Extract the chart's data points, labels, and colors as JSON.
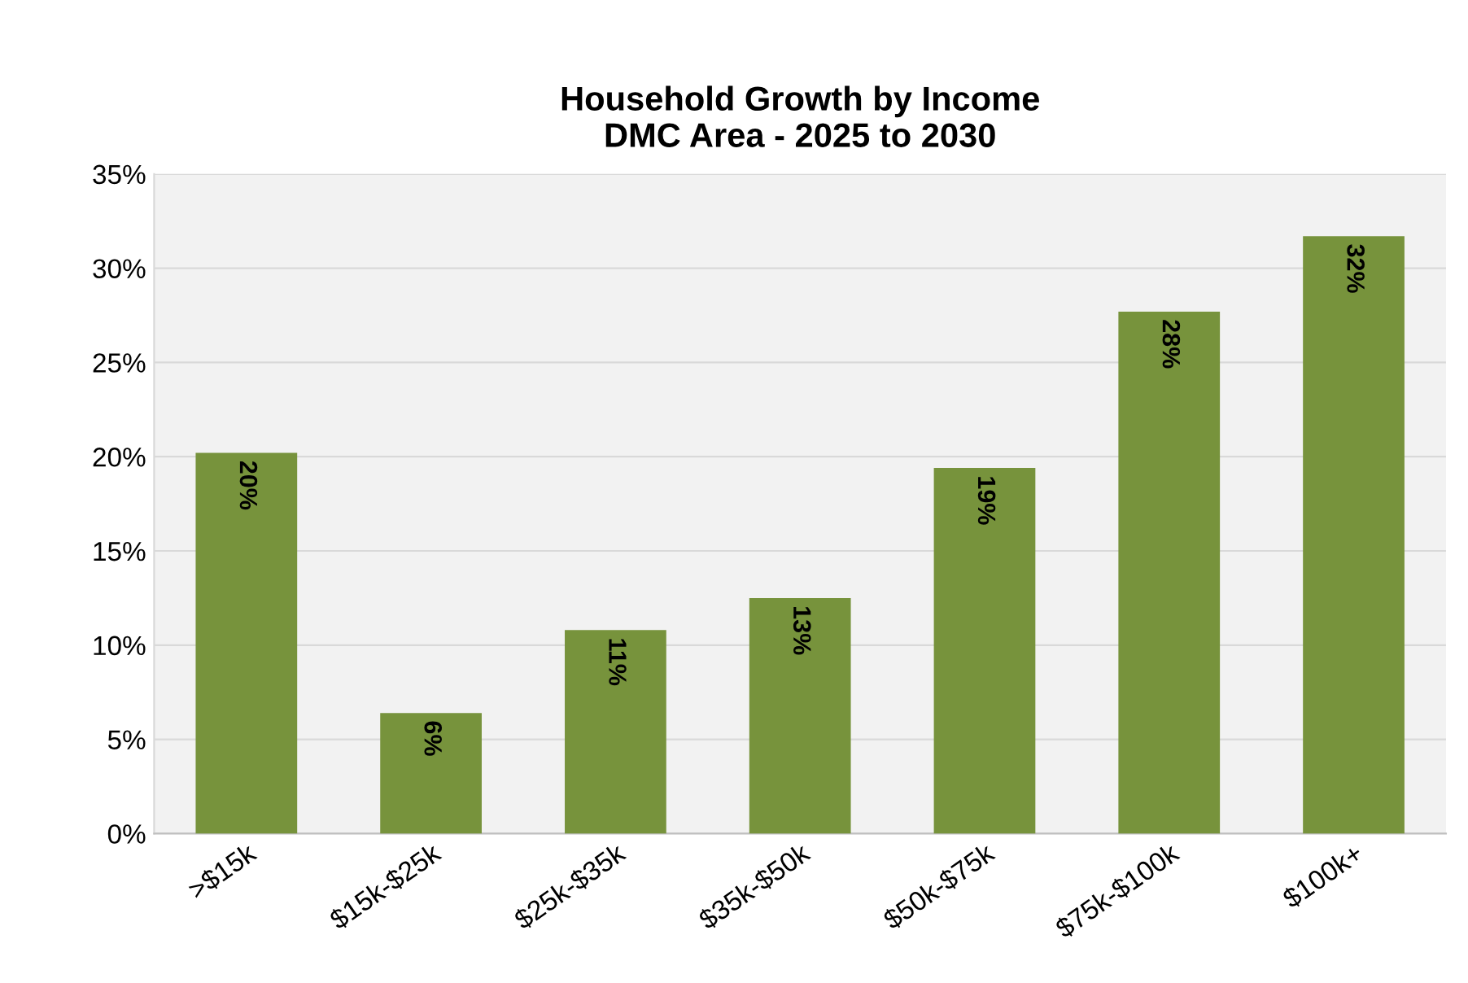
{
  "chart_data": {
    "type": "bar",
    "title": "Household Growth by Income\nDMC Area - 2025 to 2030",
    "categories": [
      ">$15k",
      "$15k-$25k",
      "$25k-$35k",
      "$35k-$50k",
      "$50k-$75k",
      "$75k-$100k",
      "$100k+"
    ],
    "values": [
      20.2,
      6.4,
      10.8,
      12.5,
      19.4,
      27.7,
      31.7
    ],
    "value_labels": [
      "20%",
      "6%",
      "11%",
      "13%",
      "19%",
      "28%",
      "32%"
    ],
    "color": "#77933c",
    "ylim": [
      0,
      35
    ],
    "yticks": [
      {
        "value": 0,
        "label": "0%"
      },
      {
        "value": 5,
        "label": "5%"
      },
      {
        "value": 10,
        "label": "10%"
      },
      {
        "value": 15,
        "label": "15%"
      },
      {
        "value": 20,
        "label": "20%"
      },
      {
        "value": 25,
        "label": "25%"
      },
      {
        "value": 30,
        "label": "30%"
      },
      {
        "value": 35,
        "label": "35%"
      }
    ],
    "grid": "y",
    "legend": false
  }
}
